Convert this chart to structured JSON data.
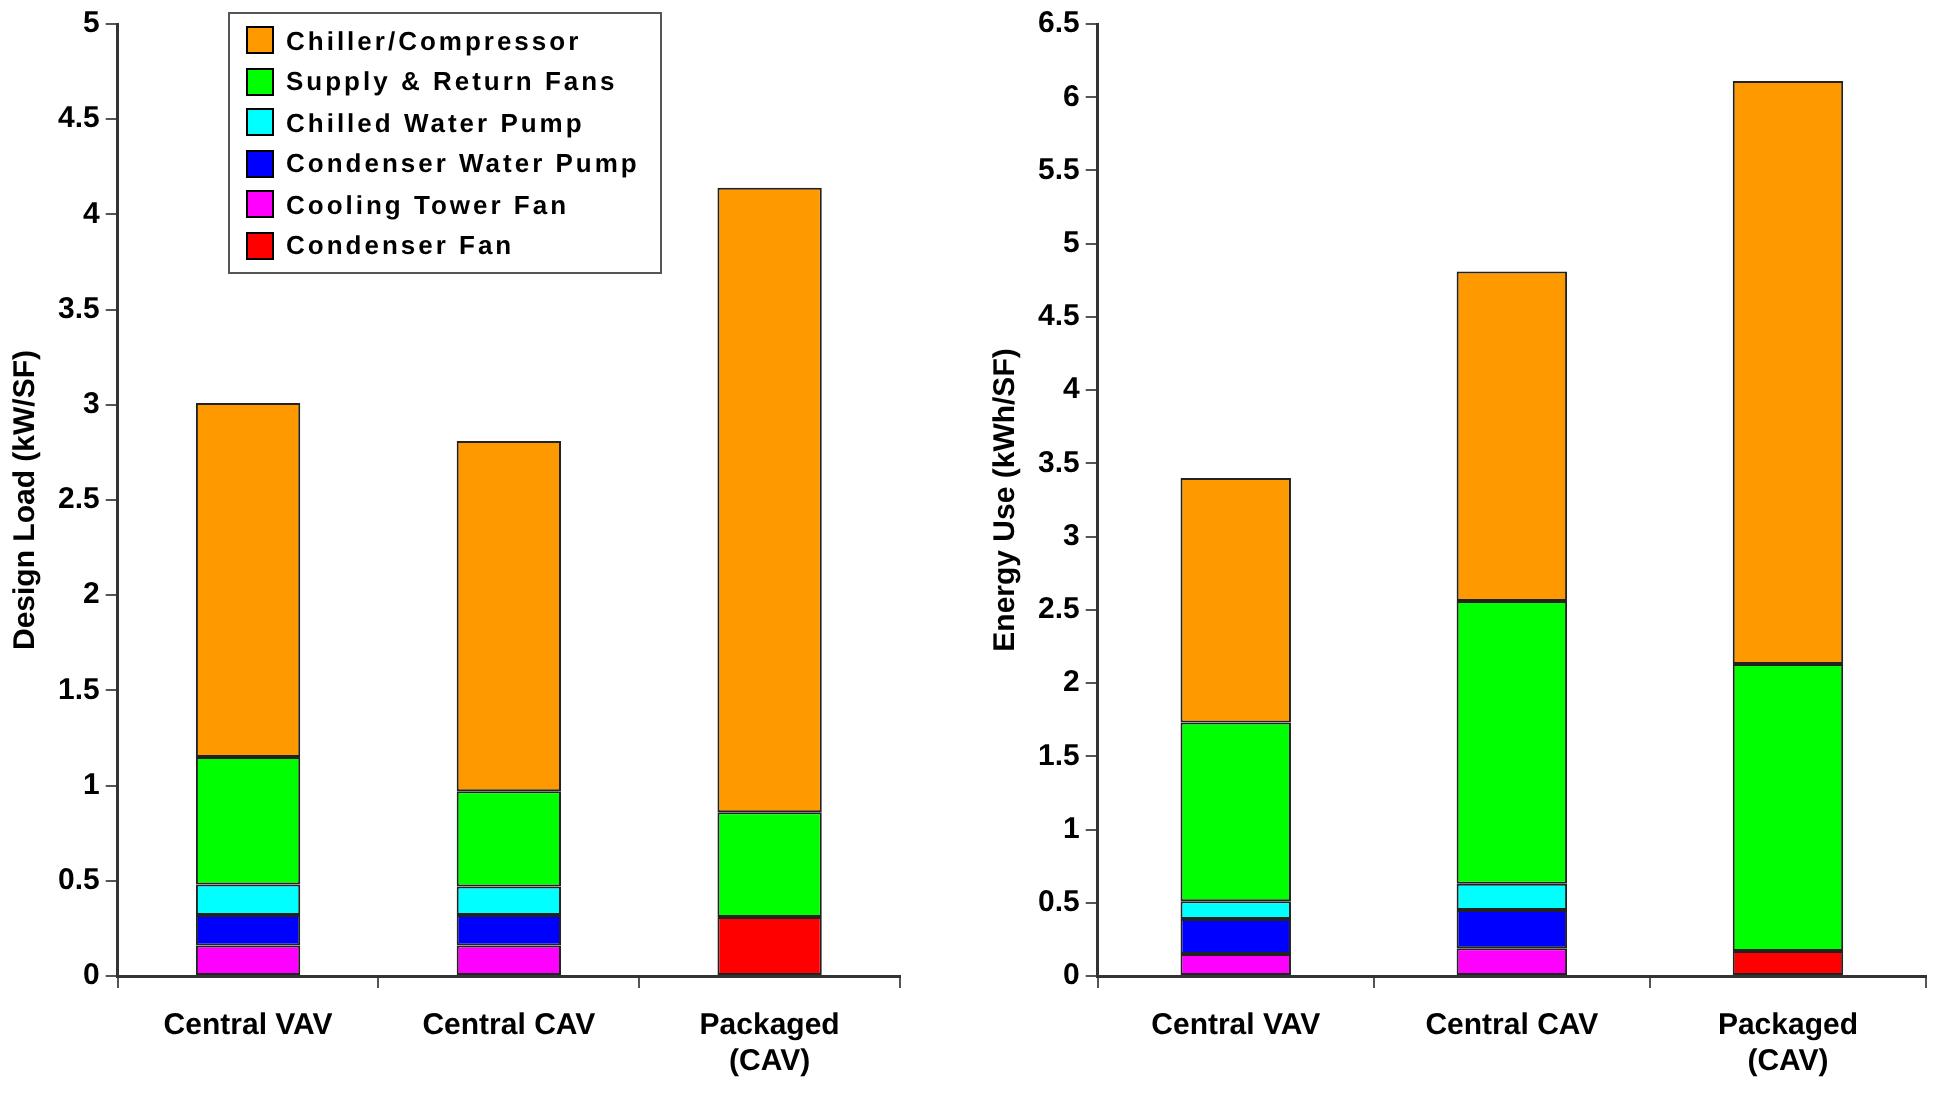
{
  "chart_data": [
    {
      "type": "bar",
      "stacked": true,
      "ylabel": "Design Load (kW/SF)",
      "categories": [
        "Central VAV",
        "Central CAV",
        "Packaged (CAV)"
      ],
      "ylim": [
        0,
        5
      ],
      "yticks": [
        0,
        0.5,
        1,
        1.5,
        2,
        2.5,
        3,
        3.5,
        4,
        4.5,
        5
      ],
      "grid": false,
      "legend": "top left",
      "series": [
        {
          "name": "Condenser Fan",
          "color": "#ff0000",
          "values": [
            null,
            null,
            0.31
          ]
        },
        {
          "name": "Cooling Tower Fan",
          "color": "#ff00ff",
          "values": [
            0.16,
            0.16,
            null
          ]
        },
        {
          "name": "Condenser Water Pump",
          "color": "#0000ff",
          "values": [
            0.16,
            0.16,
            null
          ]
        },
        {
          "name": "Chilled Water Pump",
          "color": "#00ffff",
          "values": [
            0.16,
            0.15,
            null
          ]
        },
        {
          "name": "Supply & Return Fans",
          "color": "#00ff00",
          "values": [
            0.67,
            0.5,
            0.55
          ]
        },
        {
          "name": "Chiller/Compressor",
          "color": "#ff9900",
          "values": [
            1.86,
            1.84,
            3.28
          ]
        }
      ]
    },
    {
      "type": "bar",
      "stacked": true,
      "ylabel": "Energy Use (kWh/SF)",
      "categories": [
        "Central VAV",
        "Central CAV",
        "Packaged (CAV)"
      ],
      "ylim": [
        0,
        6.5
      ],
      "yticks": [
        0,
        0.5,
        1,
        1.5,
        2,
        2.5,
        3,
        3.5,
        4,
        4.5,
        5,
        5.5,
        6,
        6.5
      ],
      "grid": false,
      "legend": false,
      "series": [
        {
          "color": "#ff0000",
          "values": [
            null,
            null,
            0.17
          ]
        },
        {
          "color": "#ff00ff",
          "values": [
            0.15,
            0.19,
            null
          ]
        },
        {
          "color": "#0000ff",
          "values": [
            0.24,
            0.26,
            null
          ]
        },
        {
          "color": "#00ffff",
          "values": [
            0.12,
            0.18,
            null
          ]
        },
        {
          "color": "#00ff00",
          "values": [
            1.22,
            1.93,
            1.96
          ]
        },
        {
          "color": "#ff9900",
          "values": [
            1.67,
            2.25,
            3.98
          ]
        }
      ]
    }
  ]
}
